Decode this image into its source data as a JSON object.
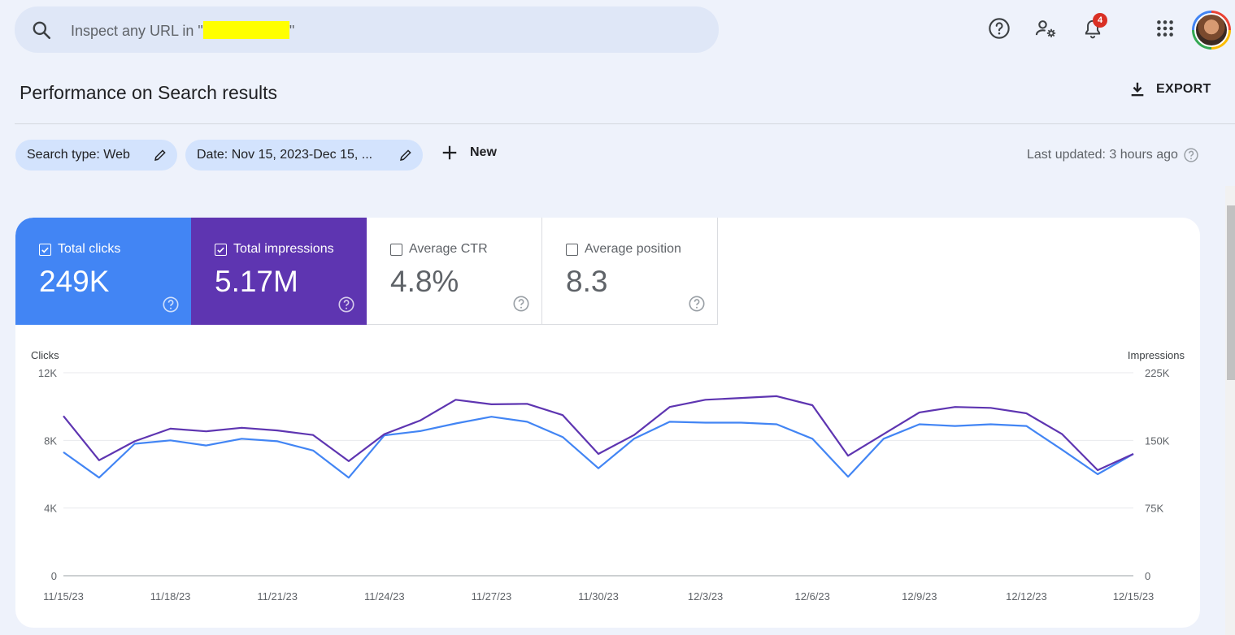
{
  "search": {
    "placeholder": "Inspect any URL in \""
  },
  "topbar": {
    "notification_count": "4"
  },
  "header": {
    "title": "Performance on Search results",
    "export_label": "EXPORT"
  },
  "filters": {
    "search_type": "Search type: Web",
    "date": "Date: Nov 15, 2023-Dec 15, ...",
    "new_label": "New",
    "last_updated": "Last updated: 3 hours ago"
  },
  "metrics": [
    {
      "label": "Total clicks",
      "value": "249K",
      "checked": true,
      "color": "#4285f4"
    },
    {
      "label": "Total impressions",
      "value": "5.17M",
      "checked": true,
      "color": "#5e35b1"
    },
    {
      "label": "Average CTR",
      "value": "4.8%",
      "checked": false
    },
    {
      "label": "Average position",
      "value": "8.3",
      "checked": false
    }
  ],
  "chart_data": {
    "type": "line",
    "left_axis_label": "Clicks",
    "right_axis_label": "Impressions",
    "left_ticks": [
      "0",
      "4K",
      "8K",
      "12K"
    ],
    "right_ticks": [
      "0",
      "75K",
      "150K",
      "225K"
    ],
    "left_ylim": [
      0,
      12000
    ],
    "right_ylim": [
      0,
      225000
    ],
    "x_tick_labels": [
      "11/15/23",
      "11/18/23",
      "11/21/23",
      "11/24/23",
      "11/27/23",
      "11/30/23",
      "12/3/23",
      "12/6/23",
      "12/9/23",
      "12/12/23",
      "12/15/23"
    ],
    "x_start": "11/15/23",
    "grid": true,
    "series": [
      {
        "name": "Clicks",
        "axis": "left",
        "color": "#4285f4",
        "values": [
          7300,
          5800,
          7800,
          8000,
          7700,
          8100,
          7950,
          7400,
          5800,
          8300,
          8550,
          9000,
          9400,
          9100,
          8200,
          6350,
          8100,
          9100,
          9050,
          9050,
          8950,
          8100,
          5850,
          8100,
          8950,
          8850,
          8950,
          8850,
          7450,
          6000,
          7200
        ]
      },
      {
        "name": "Impressions",
        "axis": "right",
        "color": "#5e35b1",
        "values": [
          177000,
          128000,
          149000,
          163000,
          160000,
          164000,
          161000,
          156000,
          127000,
          157000,
          172000,
          195000,
          190000,
          190500,
          178000,
          135000,
          156000,
          187000,
          195000,
          197000,
          199000,
          189000,
          133000,
          157000,
          181000,
          187000,
          186000,
          180000,
          157000,
          117000,
          135000
        ]
      }
    ]
  }
}
